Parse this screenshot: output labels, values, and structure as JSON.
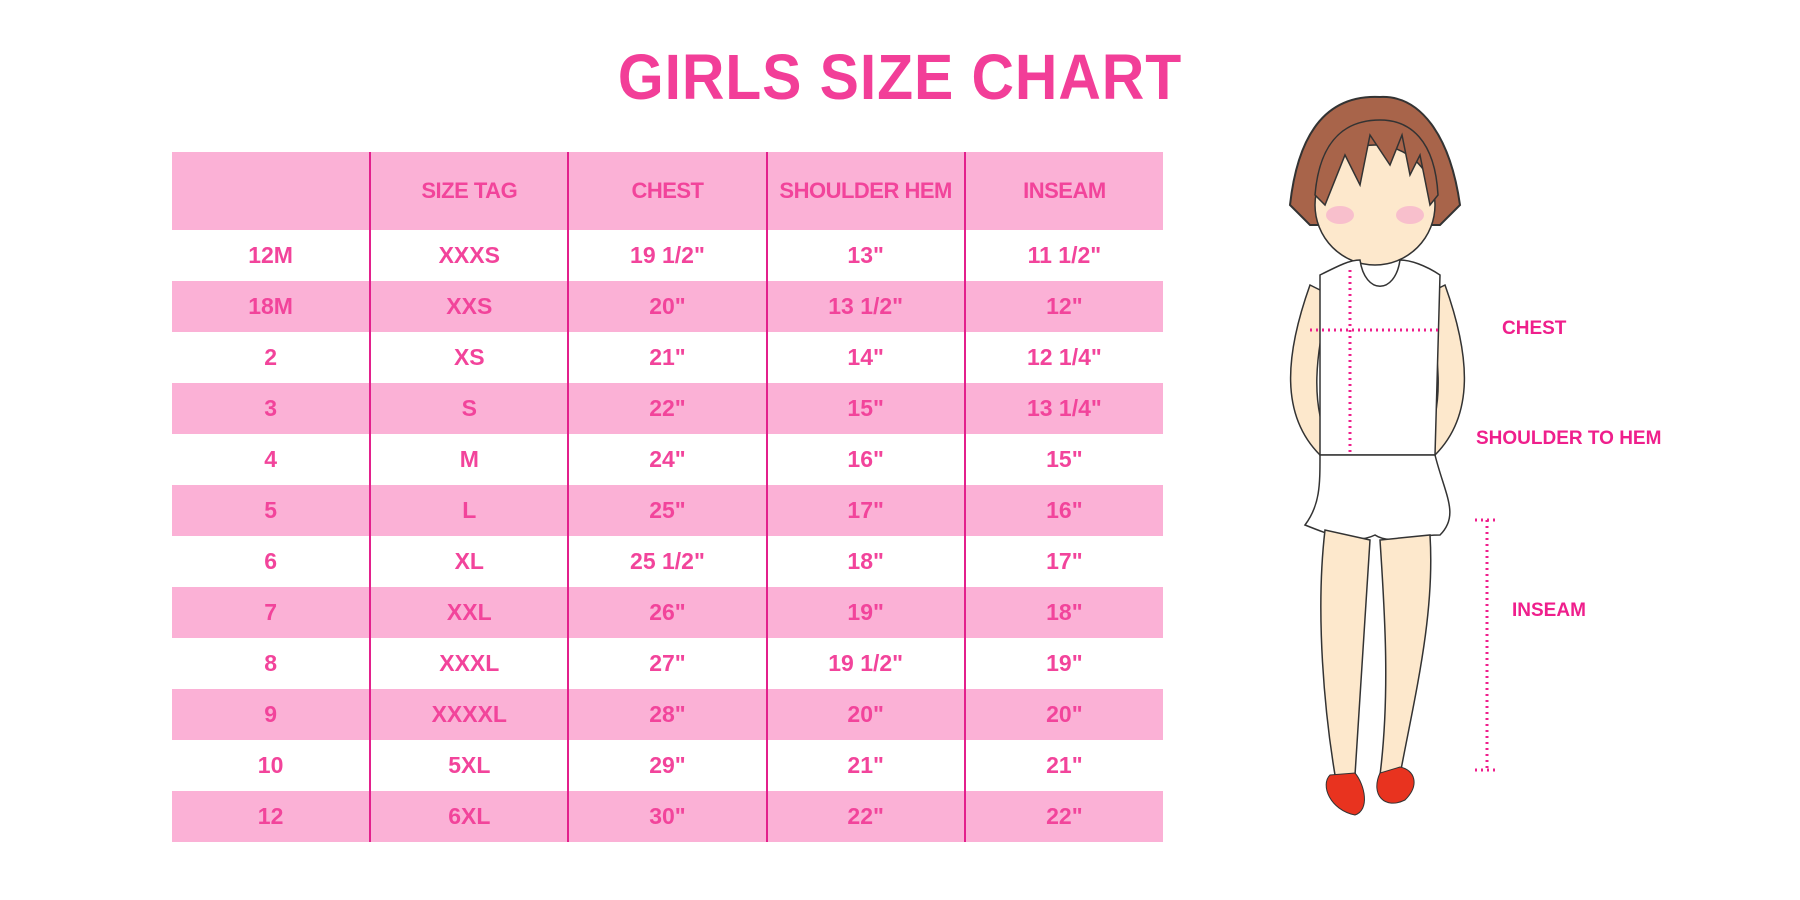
{
  "title": "GIRLS SIZE CHART",
  "table": {
    "headers": [
      "",
      "SIZE TAG",
      "CHEST",
      "SHOULDER HEM",
      "INSEAM"
    ],
    "rows": [
      [
        "12M",
        "XXXS",
        "19 1/2\"",
        "13\"",
        "11 1/2\""
      ],
      [
        "18M",
        "XXS",
        "20\"",
        "13 1/2\"",
        "12\""
      ],
      [
        "2",
        "XS",
        "21\"",
        "14\"",
        "12 1/4\""
      ],
      [
        "3",
        "S",
        "22\"",
        "15\"",
        "13 1/4\""
      ],
      [
        "4",
        "M",
        "24\"",
        "16\"",
        "15\""
      ],
      [
        "5",
        "L",
        "25\"",
        "17\"",
        "16\""
      ],
      [
        "6",
        "XL",
        "25 1/2\"",
        "18\"",
        "17\""
      ],
      [
        "7",
        "XXL",
        "26\"",
        "19\"",
        "18\""
      ],
      [
        "8",
        "XXXL",
        "27\"",
        "19 1/2\"",
        "19\""
      ],
      [
        "9",
        "XXXXL",
        "28\"",
        "20\"",
        "20\""
      ],
      [
        "10",
        "5XL",
        "29\"",
        "21\"",
        "21\""
      ],
      [
        "12",
        "6XL",
        "30\"",
        "22\"",
        "22\""
      ]
    ]
  },
  "figure": {
    "labels": {
      "chest": "CHEST",
      "shoulder_to_hem": "SHOULDER TO HEM",
      "inseam": "INSEAM"
    }
  },
  "colors": {
    "accent": "#f2449b",
    "band": "#fbb1d6",
    "divider": "#e3208c"
  }
}
